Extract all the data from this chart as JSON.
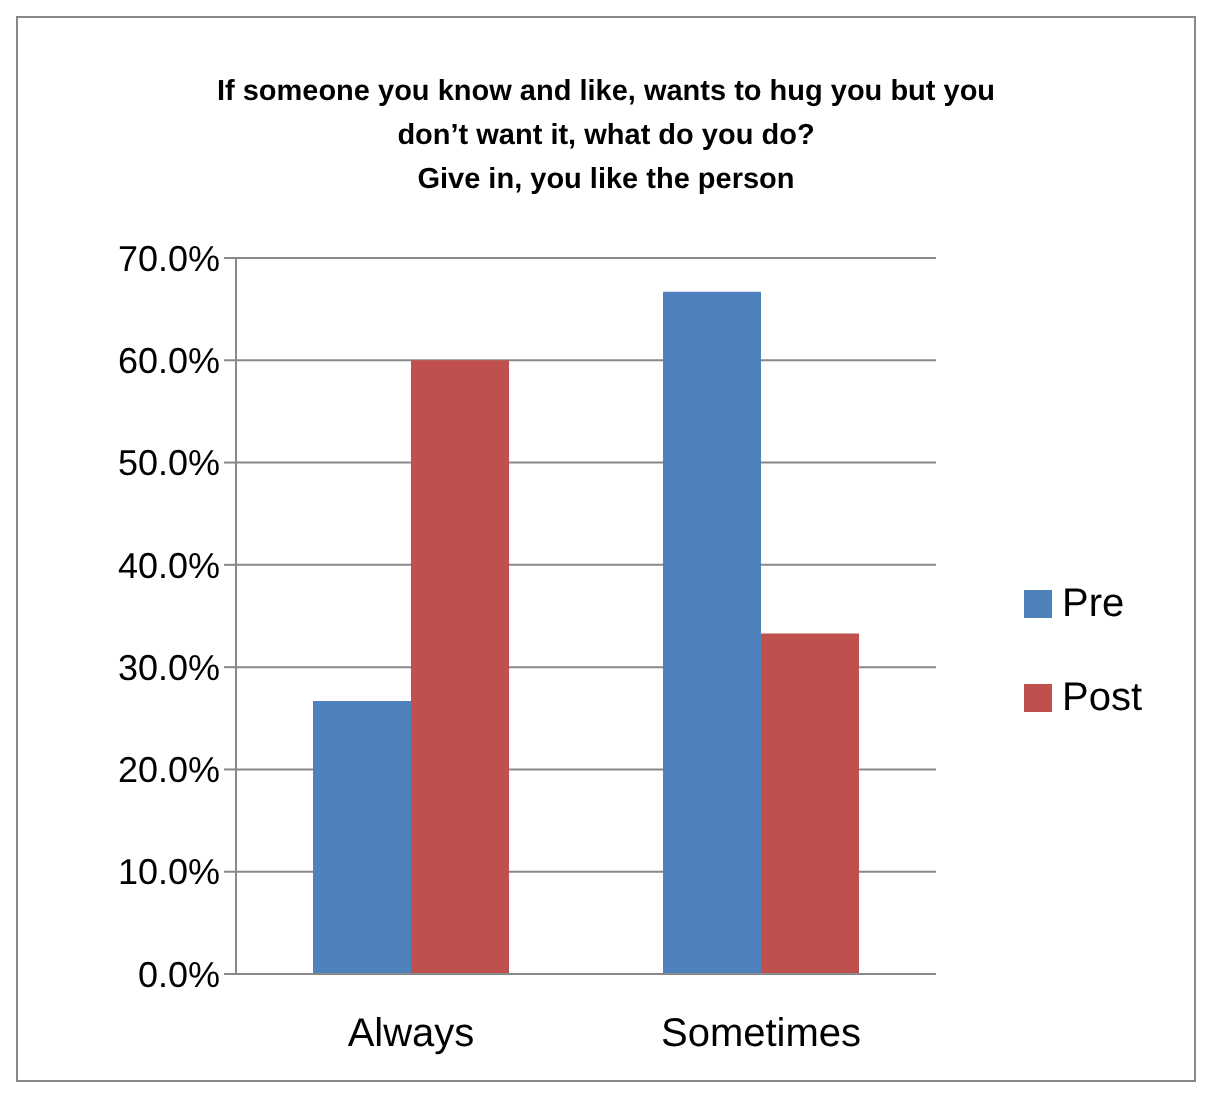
{
  "chart_data": {
    "type": "bar",
    "title": "If someone you know and like, wants to hug you but you don’t want it, what do you do?",
    "subtitle": "Give in, you like the person",
    "categories": [
      "Always",
      "Sometimes"
    ],
    "series": [
      {
        "name": "Pre",
        "color": "#4f81bd",
        "values": [
          26.7,
          66.7
        ]
      },
      {
        "name": "Post",
        "color": "#c0504d",
        "values": [
          60.0,
          33.3
        ]
      }
    ],
    "ylim": [
      0,
      70
    ],
    "yticks": [
      {
        "value": 0,
        "label": "0.0%"
      },
      {
        "value": 10,
        "label": "10.0%"
      },
      {
        "value": 20,
        "label": "20.0%"
      },
      {
        "value": 30,
        "label": "30.0%"
      },
      {
        "value": 40,
        "label": "40.0%"
      },
      {
        "value": 50,
        "label": "50.0%"
      },
      {
        "value": 60,
        "label": "60.0%"
      },
      {
        "value": 70,
        "label": "70.0%"
      }
    ],
    "grid": "y",
    "legend": "right"
  }
}
